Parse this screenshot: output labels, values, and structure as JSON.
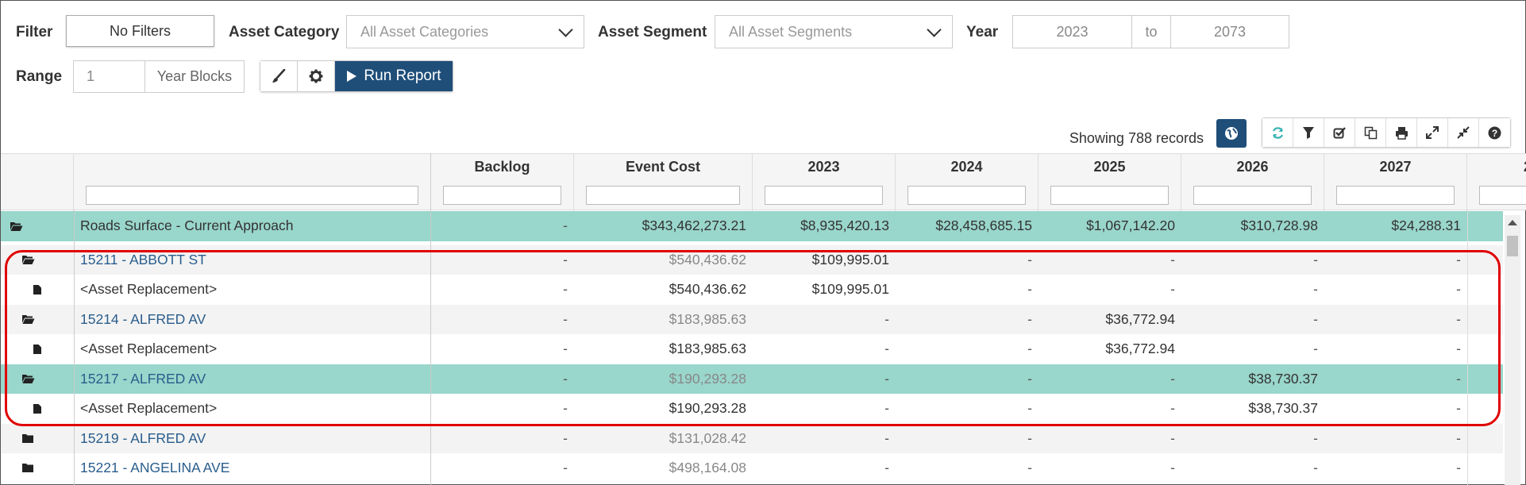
{
  "filters": {
    "filter_label": "Filter",
    "filter_value": "No Filters",
    "asset_category_label": "Asset Category",
    "asset_category_placeholder": "All Asset Categories",
    "asset_segment_label": "Asset Segment",
    "asset_segment_placeholder": "All Asset Segments",
    "year_label": "Year",
    "year_from": "2023",
    "year_to_label": "to",
    "year_to": "2073",
    "range_label": "Range",
    "range_value": "1",
    "range_unit": "Year Blocks",
    "run_report_label": "Run Report"
  },
  "grid": {
    "showing_text": "Showing 788 records",
    "columns": [
      "Backlog",
      "Event Cost",
      "2023",
      "2024",
      "2025",
      "2026",
      "2027",
      "2"
    ],
    "rows": [
      {
        "type": "group",
        "icon": "folder-open-icon",
        "name": "Roads Surface - Current Approach",
        "backlog": "-",
        "event_cost": "$343,462,273.21",
        "y2023": "$8,935,420.13",
        "y2024": "$28,458,685.15",
        "y2025": "$1,067,142.20",
        "y2026": "$310,728.98",
        "y2027": "$24,288.31"
      },
      {
        "type": "asset",
        "icon": "folder-open-icon",
        "name": "15211 - ABBOTT ST",
        "backlog": "-",
        "event_cost": "$540,436.62",
        "y2023": "$109,995.01",
        "y2024": "-",
        "y2025": "-",
        "y2026": "-",
        "y2027": "-"
      },
      {
        "type": "event",
        "icon": "file-icon",
        "name": "<Asset Replacement>",
        "backlog": "-",
        "event_cost": "$540,436.62",
        "y2023": "$109,995.01",
        "y2024": "-",
        "y2025": "-",
        "y2026": "-",
        "y2027": "-"
      },
      {
        "type": "asset",
        "icon": "folder-open-icon",
        "name": "15214 - ALFRED AV",
        "backlog": "-",
        "event_cost": "$183,985.63",
        "y2023": "-",
        "y2024": "-",
        "y2025": "$36,772.94",
        "y2026": "-",
        "y2027": "-"
      },
      {
        "type": "event",
        "icon": "file-icon",
        "name": "<Asset Replacement>",
        "backlog": "-",
        "event_cost": "$183,985.63",
        "y2023": "-",
        "y2024": "-",
        "y2025": "$36,772.94",
        "y2026": "-",
        "y2027": "-"
      },
      {
        "type": "asset",
        "icon": "folder-open-icon",
        "name": "15217 - ALFRED AV",
        "backlog": "-",
        "event_cost": "$190,293.28",
        "y2023": "-",
        "y2024": "-",
        "y2025": "-",
        "y2026": "$38,730.37",
        "y2027": "-"
      },
      {
        "type": "event",
        "icon": "file-icon",
        "name": "<Asset Replacement>",
        "backlog": "-",
        "event_cost": "$190,293.28",
        "y2023": "-",
        "y2024": "-",
        "y2025": "-",
        "y2026": "$38,730.37",
        "y2027": "-"
      },
      {
        "type": "asset",
        "icon": "folder-closed-icon",
        "name": "15219 - ALFRED AV",
        "backlog": "-",
        "event_cost": "$131,028.42",
        "y2023": "-",
        "y2024": "-",
        "y2025": "-",
        "y2026": "-",
        "y2027": "-"
      },
      {
        "type": "asset",
        "icon": "folder-closed-icon",
        "name": "15221 - ANGELINA AVE",
        "backlog": "-",
        "event_cost": "$498,164.08",
        "y2023": "-",
        "y2024": "-",
        "y2025": "-",
        "y2026": "-",
        "y2027": "-"
      }
    ]
  },
  "colors": {
    "accent": "#1f4e79",
    "highlight_row": "#99d6cb",
    "link": "#2a5d8c",
    "annotation": "#e00000"
  }
}
